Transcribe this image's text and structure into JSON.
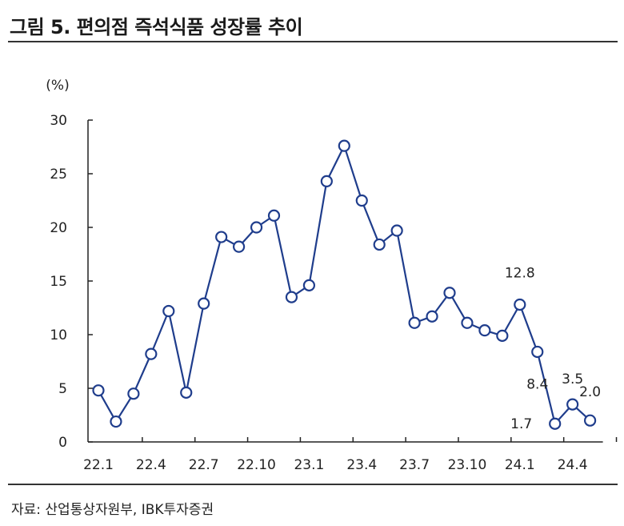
{
  "title": "그림 5. 편의점 즉석식품 성장률 추이",
  "source": "자료: 산업통상자원부, IBK투자증권",
  "chart_data": {
    "type": "line",
    "title": "그림 5. 편의점 즉석식품 성장률 추이",
    "ylabel": "(%)",
    "xlabel": "",
    "ylim": [
      0,
      30
    ],
    "yticks": [
      0,
      5,
      10,
      15,
      20,
      25,
      30
    ],
    "xtick_labels": [
      "22.1",
      "22.4",
      "22.7",
      "22.10",
      "23.1",
      "23.4",
      "23.7",
      "23.10",
      "24.1",
      "24.4"
    ],
    "x": [
      "22.1",
      "22.2",
      "22.3",
      "22.4",
      "22.5",
      "22.6",
      "22.7",
      "22.8",
      "22.9",
      "22.10",
      "22.11",
      "22.12",
      "23.1",
      "23.2",
      "23.3",
      "23.4",
      "23.5",
      "23.6",
      "23.7",
      "23.8",
      "23.9",
      "23.10",
      "23.11",
      "23.12",
      "24.1",
      "24.2",
      "24.3",
      "24.4",
      "24.5"
    ],
    "series": [
      {
        "values": [
          4.8,
          1.9,
          4.5,
          8.2,
          12.2,
          4.6,
          12.9,
          19.1,
          18.2,
          20.0,
          21.1,
          13.5,
          14.6,
          24.3,
          27.6,
          22.5,
          18.4,
          19.7,
          11.1,
          11.7,
          13.9,
          11.1,
          10.4,
          9.9,
          12.8,
          8.4,
          1.7,
          3.5,
          2.0
        ],
        "color": "#1f3d8c"
      }
    ],
    "annotations": [
      {
        "index": 24,
        "text": "12.8"
      },
      {
        "index": 25,
        "text": "8.4"
      },
      {
        "index": 26,
        "text": "1.7"
      },
      {
        "index": 27,
        "text": "3.5"
      },
      {
        "index": 28,
        "text": "2.0"
      }
    ],
    "grid": false,
    "legend": "none"
  }
}
